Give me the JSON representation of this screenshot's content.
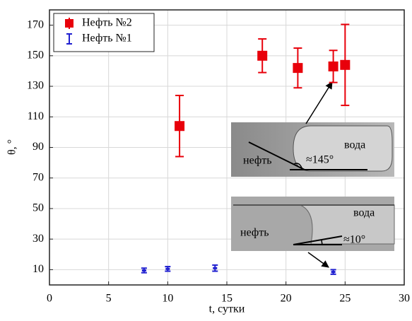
{
  "chart_data": {
    "type": "scatter",
    "xlabel": "t, сутки",
    "ylabel": "θ, °",
    "xlim": [
      0,
      30
    ],
    "xticks": [
      0,
      5,
      10,
      15,
      20,
      25,
      30
    ],
    "ylim": [
      0,
      180
    ],
    "yticks": [
      10,
      30,
      50,
      70,
      90,
      110,
      130,
      150,
      170
    ],
    "grid": true,
    "legend": "upper left",
    "series": [
      {
        "name": "Нефть №2",
        "color": "#e8000b",
        "marker": "square",
        "x": [
          11,
          18,
          21,
          24,
          25
        ],
        "values": [
          104,
          150,
          142,
          143,
          144
        ],
        "errors": [
          20,
          11,
          13,
          10.5,
          26.5
        ]
      },
      {
        "name": "Нефть №1",
        "color": "#1f1fd0",
        "marker": "bar",
        "x": [
          8,
          10,
          14,
          24
        ],
        "values": [
          9.5,
          10.5,
          11,
          8.5
        ],
        "errors": [
          1.5,
          1.5,
          2,
          1.5
        ]
      }
    ],
    "annotations": [
      "вода",
      "нефть",
      "≈145°",
      "вода",
      "нефть",
      "≈10°"
    ]
  }
}
